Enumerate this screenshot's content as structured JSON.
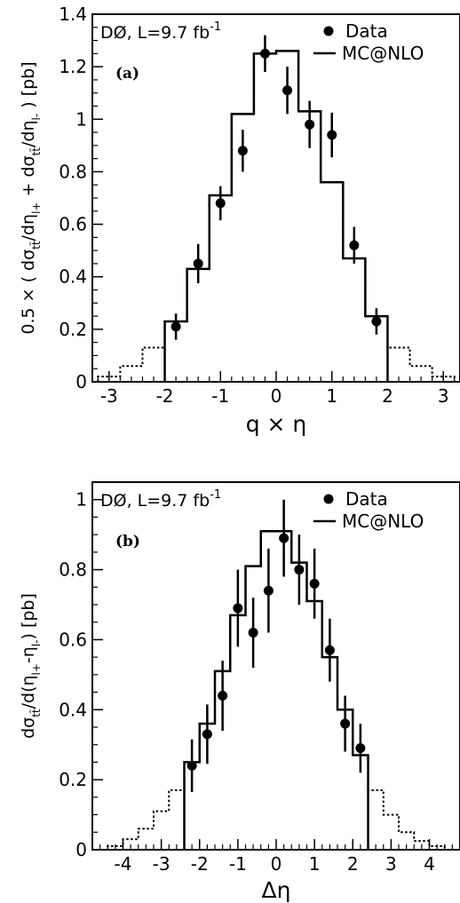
{
  "chart_data": [
    {
      "type": "step-histogram-with-points",
      "panel_label": "(a)",
      "experiment_label": "DØ, L=9.7 fb",
      "experiment_label_sup": "-1",
      "xlabel": "q × η",
      "ylabel": "0.5 × ( dσ/dη + dσ/dη ) [pb]",
      "ylabel_parts": {
        "prefix": "0.5 × ( dσ",
        "sub1": "tt̄",
        "mid1": "/dη",
        "sub2": "l+",
        "mid2": " + dσ",
        "sub3": "tt̄",
        "mid3": "/dη",
        "sub4": "l-",
        "suffix": " ) [pb]"
      },
      "xlim": [
        -3.3,
        3.3
      ],
      "ylim": [
        0,
        1.4
      ],
      "xticks": [
        -3,
        -2,
        -1,
        0,
        1,
        2,
        3
      ],
      "xtick_labels": [
        "-3",
        "-2",
        "-1",
        "0",
        "1",
        "2",
        "3"
      ],
      "yticks": [
        0,
        0.2,
        0.4,
        0.6,
        0.8,
        1.0,
        1.2,
        1.4
      ],
      "ytick_labels": [
        "0",
        "0.2",
        "0.4",
        "0.6",
        "0.8",
        "1",
        "1.2",
        "1.4"
      ],
      "legend": {
        "position": "top-right",
        "entries": [
          "Data",
          "MC@NLO"
        ]
      },
      "mc_dotted": {
        "edges": [
          -3.2,
          -2.8,
          -2.4,
          -2.0,
          -1.6,
          -1.2,
          -0.8,
          -0.4,
          0.0,
          0.4,
          0.8,
          1.2,
          1.6,
          2.0,
          2.4,
          2.8,
          3.2
        ],
        "values": [
          0.02,
          0.06,
          0.13,
          0.23,
          0.43,
          0.71,
          1.02,
          1.25,
          1.26,
          1.03,
          0.76,
          0.47,
          0.25,
          0.13,
          0.06,
          0.02
        ]
      },
      "mc_solid": {
        "edges": [
          -2.0,
          -1.6,
          -1.2,
          -0.8,
          -0.4,
          0.0,
          0.4,
          0.8,
          1.2,
          1.6,
          2.0
        ],
        "values": [
          0.23,
          0.43,
          0.71,
          1.02,
          1.25,
          1.26,
          1.03,
          0.76,
          0.47,
          0.25
        ]
      },
      "data_points": [
        {
          "x": -1.8,
          "y": 0.21,
          "err": 0.05
        },
        {
          "x": -1.4,
          "y": 0.45,
          "err": 0.075
        },
        {
          "x": -1.0,
          "y": 0.68,
          "err": 0.065
        },
        {
          "x": -0.6,
          "y": 0.88,
          "err": 0.08
        },
        {
          "x": -0.2,
          "y": 1.25,
          "err": 0.07
        },
        {
          "x": 0.2,
          "y": 1.11,
          "err": 0.09
        },
        {
          "x": 0.6,
          "y": 0.98,
          "err": 0.09
        },
        {
          "x": 1.0,
          "y": 0.94,
          "err": 0.085
        },
        {
          "x": 1.4,
          "y": 0.52,
          "err": 0.07
        },
        {
          "x": 1.8,
          "y": 0.23,
          "err": 0.05
        }
      ]
    },
    {
      "type": "step-histogram-with-points",
      "panel_label": "(b)",
      "experiment_label": "DØ, L=9.7 fb",
      "experiment_label_sup": "-1",
      "xlabel": "Δη",
      "ylabel": "dσ/d(η-η) [pb]",
      "ylabel_parts": {
        "prefix": "dσ",
        "sub1": "tt̄",
        "mid1": "/d(η",
        "sub2": "l+",
        "mid2": "-η",
        "sub3": "l-",
        "suffix": ") [pb]"
      },
      "xlim": [
        -4.8,
        4.8
      ],
      "ylim": [
        0,
        1.05
      ],
      "xticks": [
        -4,
        -3,
        -2,
        -1,
        0,
        1,
        2,
        3,
        4
      ],
      "xtick_labels": [
        "-4",
        "-3",
        "-2",
        "-1",
        "0",
        "1",
        "2",
        "3",
        "4"
      ],
      "yticks": [
        0,
        0.2,
        0.4,
        0.6,
        0.8,
        1.0
      ],
      "ytick_labels": [
        "0",
        "0.2",
        "0.4",
        "0.6",
        "0.8",
        "1"
      ],
      "legend": {
        "position": "top-right",
        "entries": [
          "Data",
          "MC@NLO"
        ]
      },
      "mc_dotted": {
        "edges": [
          -4.8,
          -4.4,
          -4.0,
          -3.6,
          -3.2,
          -2.8,
          -2.4,
          -2.0,
          -1.6,
          -1.2,
          -0.8,
          -0.4,
          0.0,
          0.4,
          0.8,
          1.2,
          1.6,
          2.0,
          2.4,
          2.8,
          3.2,
          3.6,
          4.0,
          4.4,
          4.8
        ],
        "values": [
          0.0,
          0.01,
          0.03,
          0.06,
          0.11,
          0.17,
          0.25,
          0.36,
          0.51,
          0.67,
          0.81,
          0.91,
          0.91,
          0.82,
          0.71,
          0.55,
          0.4,
          0.27,
          0.17,
          0.1,
          0.05,
          0.025,
          0.01,
          0.0
        ]
      },
      "mc_solid": {
        "edges": [
          -2.4,
          -2.0,
          -1.6,
          -1.2,
          -0.8,
          -0.4,
          0.0,
          0.4,
          0.8,
          1.2,
          1.6,
          2.0,
          2.4
        ],
        "values": [
          0.25,
          0.36,
          0.51,
          0.67,
          0.81,
          0.91,
          0.91,
          0.82,
          0.71,
          0.55,
          0.4,
          0.27
        ]
      },
      "data_points": [
        {
          "x": -2.2,
          "y": 0.24,
          "err": 0.075
        },
        {
          "x": -1.8,
          "y": 0.33,
          "err": 0.085
        },
        {
          "x": -1.4,
          "y": 0.44,
          "err": 0.1
        },
        {
          "x": -1.0,
          "y": 0.69,
          "err": 0.11
        },
        {
          "x": -0.6,
          "y": 0.62,
          "err": 0.1
        },
        {
          "x": -0.2,
          "y": 0.74,
          "err": 0.12
        },
        {
          "x": 0.2,
          "y": 0.89,
          "err": 0.11
        },
        {
          "x": 0.6,
          "y": 0.8,
          "err": 0.1
        },
        {
          "x": 1.0,
          "y": 0.76,
          "err": 0.1
        },
        {
          "x": 1.4,
          "y": 0.57,
          "err": 0.09
        },
        {
          "x": 1.8,
          "y": 0.36,
          "err": 0.08
        },
        {
          "x": 2.2,
          "y": 0.29,
          "err": 0.07
        }
      ]
    }
  ]
}
